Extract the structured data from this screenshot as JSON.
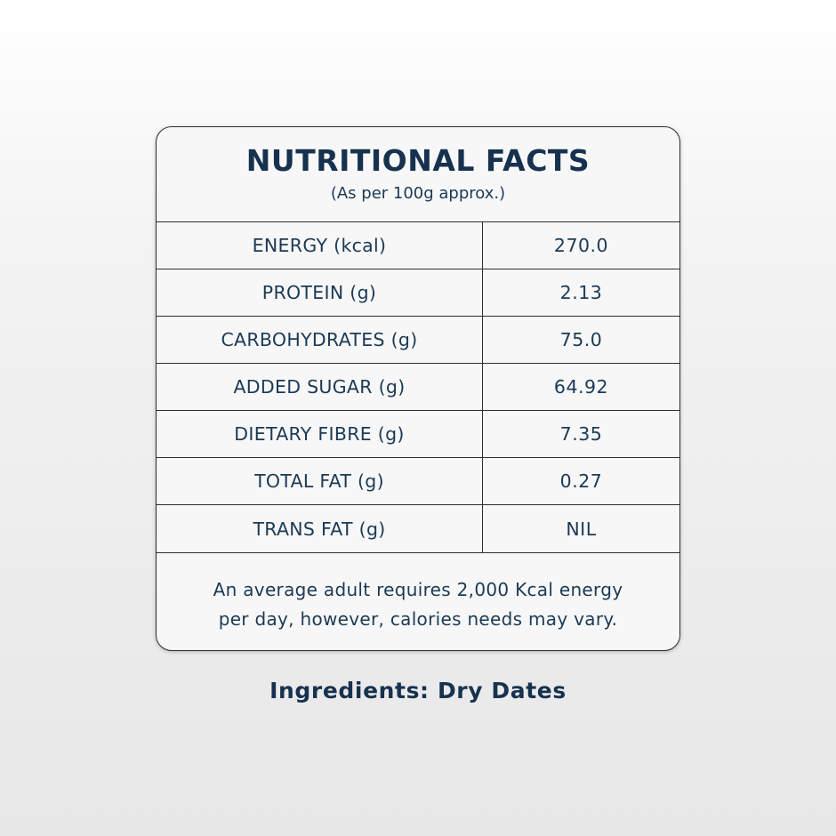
{
  "card": {
    "title": "NUTRITIONAL FACTS",
    "subtitle": "(As per 100g approx.)",
    "rows": [
      {
        "label": "ENERGY (kcal)",
        "value": "270.0"
      },
      {
        "label": "PROTEIN (g)",
        "value": "2.13"
      },
      {
        "label": "CARBOHYDRATES (g)",
        "value": "75.0"
      },
      {
        "label": "ADDED SUGAR (g)",
        "value": "64.92"
      },
      {
        "label": "DIETARY FIBRE (g)",
        "value": "7.35"
      },
      {
        "label": "TOTAL FAT (g)",
        "value": "0.27"
      },
      {
        "label": "TRANS FAT (g)",
        "value": "NIL"
      }
    ],
    "note_line1": "An average adult requires 2,000 Kcal energy",
    "note_line2": "per day, however, calories needs may vary."
  },
  "ingredients": "Ingredients: Dry Dates",
  "colors": {
    "text": "#1b3a55",
    "border": "#2b2f33",
    "card_background": "#f7f7f7"
  }
}
